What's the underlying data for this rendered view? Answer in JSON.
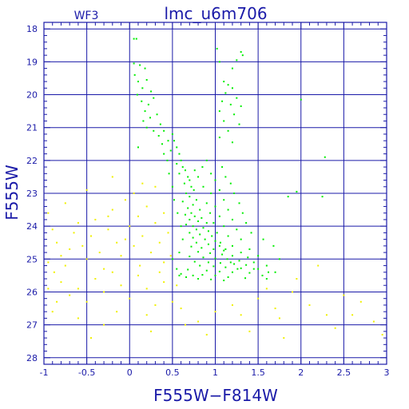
{
  "chart_data": {
    "type": "scatter",
    "panel_label": "WF3",
    "title": "lmc_u6m706",
    "xlabel": "F555W−F814W",
    "ylabel": "F555W",
    "xlim": [
      -1,
      3
    ],
    "ylim": [
      28.2,
      17.8
    ],
    "y_inverted": true,
    "grid": true,
    "x_ticks": [
      -1,
      -0.5,
      0,
      0.5,
      1,
      1.5,
      2,
      2.5,
      3
    ],
    "x_tick_labels": [
      "-1",
      "-0.5",
      "0",
      "0.5",
      "1",
      "1.5",
      "2",
      "2.5",
      "3"
    ],
    "y_ticks": [
      18,
      19,
      20,
      21,
      22,
      23,
      24,
      25,
      26,
      27,
      28
    ],
    "y_tick_labels": [
      "18",
      "19",
      "20",
      "21",
      "22",
      "23",
      "24",
      "25",
      "26",
      "27",
      "28"
    ],
    "colors": {
      "axes": "#1a1aa8",
      "grid": "#1a1aa8",
      "green_series": "#00ee00",
      "yellow_series": "#f0f000",
      "background": "#ffffff"
    },
    "series": [
      {
        "color": "green",
        "points": [
          [
            0.05,
            18.3
          ],
          [
            0.08,
            18.3
          ],
          [
            1.02,
            18.6
          ],
          [
            1.3,
            18.7
          ],
          [
            1.32,
            18.8
          ],
          [
            1.25,
            18.95
          ],
          [
            1.2,
            19.2
          ],
          [
            1.05,
            19.0
          ],
          [
            0.05,
            19.05
          ],
          [
            0.12,
            19.1
          ],
          [
            0.18,
            19.2
          ],
          [
            0.06,
            19.4
          ],
          [
            0.1,
            19.6
          ],
          [
            0.15,
            19.8
          ],
          [
            0.2,
            19.55
          ],
          [
            0.25,
            19.9
          ],
          [
            0.09,
            20.0
          ],
          [
            0.14,
            20.2
          ],
          [
            0.22,
            20.3
          ],
          [
            0.28,
            20.1
          ],
          [
            0.18,
            20.5
          ],
          [
            0.24,
            20.7
          ],
          [
            0.32,
            20.6
          ],
          [
            0.36,
            20.9
          ],
          [
            0.16,
            20.8
          ],
          [
            0.2,
            21.0
          ],
          [
            0.28,
            21.1
          ],
          [
            0.34,
            21.25
          ],
          [
            0.4,
            21.1
          ],
          [
            0.45,
            21.4
          ],
          [
            1.1,
            19.6
          ],
          [
            1.15,
            19.7
          ],
          [
            1.2,
            19.8
          ],
          [
            1.12,
            19.95
          ],
          [
            1.25,
            20.1
          ],
          [
            1.08,
            20.2
          ],
          [
            1.18,
            20.3
          ],
          [
            1.3,
            20.35
          ],
          [
            1.05,
            20.5
          ],
          [
            1.22,
            20.6
          ],
          [
            1.1,
            20.8
          ],
          [
            1.28,
            20.9
          ],
          [
            1.15,
            21.1
          ],
          [
            1.05,
            21.3
          ],
          [
            1.2,
            21.45
          ],
          [
            0.1,
            21.6
          ],
          [
            2.0,
            20.15
          ],
          [
            2.28,
            21.9
          ],
          [
            2.25,
            23.1
          ],
          [
            1.85,
            23.1
          ],
          [
            1.95,
            22.95
          ],
          [
            0.5,
            21.2
          ],
          [
            0.52,
            21.4
          ],
          [
            0.55,
            21.6
          ],
          [
            0.58,
            21.8
          ],
          [
            0.48,
            21.7
          ],
          [
            0.6,
            22.0
          ],
          [
            0.62,
            22.2
          ],
          [
            0.55,
            22.1
          ],
          [
            0.65,
            22.3
          ],
          [
            0.68,
            22.5
          ],
          [
            0.58,
            22.4
          ],
          [
            0.7,
            22.6
          ],
          [
            0.72,
            22.8
          ],
          [
            0.64,
            22.7
          ],
          [
            0.75,
            22.9
          ],
          [
            0.66,
            23.0
          ],
          [
            0.7,
            23.1
          ],
          [
            0.78,
            23.2
          ],
          [
            0.62,
            23.25
          ],
          [
            0.74,
            23.35
          ],
          [
            0.68,
            23.45
          ],
          [
            0.82,
            23.5
          ],
          [
            0.72,
            23.6
          ],
          [
            0.65,
            23.65
          ],
          [
            0.76,
            23.7
          ],
          [
            0.84,
            23.75
          ],
          [
            0.7,
            23.8
          ],
          [
            0.8,
            23.85
          ],
          [
            0.9,
            23.9
          ],
          [
            0.66,
            23.95
          ],
          [
            0.74,
            24.0
          ],
          [
            0.86,
            24.05
          ],
          [
            0.78,
            24.1
          ],
          [
            0.92,
            24.15
          ],
          [
            0.7,
            24.2
          ],
          [
            0.82,
            24.25
          ],
          [
            0.96,
            24.3
          ],
          [
            0.74,
            24.35
          ],
          [
            0.88,
            24.4
          ],
          [
            1.0,
            24.45
          ],
          [
            0.78,
            24.5
          ],
          [
            0.92,
            24.55
          ],
          [
            1.05,
            24.6
          ],
          [
            0.72,
            24.62
          ],
          [
            0.84,
            24.66
          ],
          [
            0.98,
            24.7
          ],
          [
            1.1,
            24.74
          ],
          [
            0.8,
            24.78
          ],
          [
            0.94,
            24.82
          ],
          [
            1.08,
            24.86
          ],
          [
            1.2,
            24.9
          ],
          [
            0.7,
            24.92
          ],
          [
            0.86,
            24.95
          ],
          [
            1.0,
            24.98
          ],
          [
            1.14,
            25.0
          ],
          [
            1.28,
            25.05
          ],
          [
            0.76,
            25.08
          ],
          [
            0.92,
            25.1
          ],
          [
            1.06,
            25.12
          ],
          [
            1.22,
            25.15
          ],
          [
            1.36,
            25.18
          ],
          [
            0.82,
            25.2
          ],
          [
            0.98,
            25.22
          ],
          [
            1.12,
            25.25
          ],
          [
            1.3,
            25.28
          ],
          [
            1.45,
            25.3
          ],
          [
            0.68,
            25.32
          ],
          [
            0.9,
            25.35
          ],
          [
            1.05,
            25.38
          ],
          [
            1.2,
            25.4
          ],
          [
            1.4,
            25.42
          ],
          [
            0.6,
            25.45
          ],
          [
            0.85,
            25.48
          ],
          [
            1.0,
            25.5
          ],
          [
            1.15,
            25.55
          ],
          [
            1.35,
            25.58
          ],
          [
            1.55,
            25.5
          ],
          [
            1.6,
            25.6
          ],
          [
            0.55,
            25.3
          ],
          [
            0.5,
            25.0
          ],
          [
            0.58,
            24.8
          ],
          [
            0.62,
            24.4
          ],
          [
            0.6,
            24.0
          ],
          [
            0.56,
            23.6
          ],
          [
            0.52,
            23.2
          ],
          [
            0.5,
            22.8
          ],
          [
            0.46,
            22.4
          ],
          [
            0.44,
            22.0
          ],
          [
            0.4,
            21.8
          ],
          [
            0.38,
            21.5
          ],
          [
            0.85,
            22.2
          ],
          [
            0.9,
            22.0
          ],
          [
            0.95,
            22.4
          ],
          [
            1.0,
            22.6
          ],
          [
            1.05,
            22.9
          ],
          [
            1.1,
            23.2
          ],
          [
            1.15,
            23.5
          ],
          [
            1.2,
            23.8
          ],
          [
            1.25,
            24.1
          ],
          [
            1.3,
            24.4
          ],
          [
            1.4,
            24.7
          ],
          [
            1.5,
            24.9
          ],
          [
            1.6,
            25.2
          ],
          [
            1.7,
            25.4
          ],
          [
            0.95,
            23.0
          ],
          [
            1.0,
            23.4
          ],
          [
            1.05,
            23.7
          ],
          [
            1.1,
            24.0
          ],
          [
            1.15,
            24.3
          ],
          [
            1.2,
            24.6
          ],
          [
            1.3,
            24.8
          ],
          [
            0.8,
            22.5
          ],
          [
            0.76,
            22.3
          ],
          [
            0.86,
            22.8
          ],
          [
            0.9,
            23.3
          ],
          [
            0.94,
            23.6
          ],
          [
            0.98,
            23.9
          ],
          [
            1.02,
            24.2
          ],
          [
            1.06,
            24.5
          ],
          [
            1.12,
            24.7
          ],
          [
            1.18,
            25.1
          ],
          [
            1.26,
            25.3
          ],
          [
            0.74,
            25.5
          ],
          [
            0.66,
            25.55
          ],
          [
            0.8,
            25.6
          ],
          [
            0.95,
            25.62
          ],
          [
            1.1,
            25.65
          ],
          [
            0.58,
            25.5
          ],
          [
            1.5,
            25.3
          ],
          [
            1.45,
            25.1
          ],
          [
            1.38,
            24.95
          ],
          [
            1.62,
            25.4
          ],
          [
            1.75,
            25.0
          ],
          [
            1.68,
            24.6
          ],
          [
            1.56,
            24.4
          ],
          [
            1.42,
            24.2
          ],
          [
            1.36,
            23.9
          ],
          [
            1.32,
            23.6
          ],
          [
            1.28,
            23.3
          ],
          [
            1.22,
            23.0
          ],
          [
            1.18,
            22.7
          ],
          [
            1.12,
            22.5
          ],
          [
            1.08,
            22.2
          ]
        ]
      },
      {
        "color": "yellow",
        "points": [
          [
            -0.95,
            23.6
          ],
          [
            -0.9,
            24.1
          ],
          [
            -0.85,
            24.5
          ],
          [
            -0.8,
            24.9
          ],
          [
            -0.95,
            25.1
          ],
          [
            -0.88,
            25.4
          ],
          [
            -0.75,
            25.2
          ],
          [
            -0.7,
            24.7
          ],
          [
            -0.65,
            24.2
          ],
          [
            -0.6,
            23.9
          ],
          [
            -0.55,
            24.6
          ],
          [
            -0.5,
            25.0
          ],
          [
            -0.45,
            24.3
          ],
          [
            -0.4,
            23.8
          ],
          [
            -0.35,
            24.8
          ],
          [
            -0.3,
            25.3
          ],
          [
            -0.25,
            24.1
          ],
          [
            -0.2,
            23.5
          ],
          [
            -0.15,
            24.5
          ],
          [
            -0.1,
            24.9
          ],
          [
            -0.05,
            23.2
          ],
          [
            0.0,
            24.0
          ],
          [
            0.05,
            24.6
          ],
          [
            0.1,
            23.7
          ],
          [
            0.15,
            24.3
          ],
          [
            0.2,
            23.4
          ],
          [
            0.25,
            24.8
          ],
          [
            0.3,
            23.9
          ],
          [
            0.35,
            24.5
          ],
          [
            0.4,
            25.1
          ],
          [
            0.45,
            24.2
          ],
          [
            -0.8,
            25.7
          ],
          [
            -0.7,
            26.1
          ],
          [
            -0.6,
            25.9
          ],
          [
            -0.5,
            26.3
          ],
          [
            -0.4,
            25.6
          ],
          [
            -0.3,
            26.0
          ],
          [
            -0.2,
            25.4
          ],
          [
            -0.1,
            25.8
          ],
          [
            0.0,
            26.2
          ],
          [
            0.1,
            25.5
          ],
          [
            0.2,
            25.9
          ],
          [
            0.3,
            26.4
          ],
          [
            0.4,
            25.7
          ],
          [
            -0.9,
            26.6
          ],
          [
            -0.6,
            26.8
          ],
          [
            -0.3,
            27.0
          ],
          [
            0.2,
            26.7
          ],
          [
            0.5,
            26.3
          ],
          [
            1.5,
            26.2
          ],
          [
            1.7,
            26.5
          ],
          [
            1.9,
            26.0
          ],
          [
            2.1,
            26.4
          ],
          [
            2.3,
            26.7
          ],
          [
            2.5,
            26.1
          ],
          [
            2.7,
            26.3
          ],
          [
            2.85,
            26.9
          ],
          [
            2.95,
            27.3
          ],
          [
            1.4,
            27.2
          ],
          [
            1.8,
            27.4
          ],
          [
            2.2,
            25.2
          ],
          [
            1.95,
            25.6
          ],
          [
            1.75,
            26.8
          ],
          [
            0.6,
            26.5
          ],
          [
            0.8,
            26.9
          ],
          [
            1.0,
            26.6
          ],
          [
            1.2,
            26.4
          ],
          [
            0.9,
            27.3
          ],
          [
            -0.2,
            22.5
          ],
          [
            0.05,
            23.0
          ],
          [
            0.3,
            22.8
          ],
          [
            -0.5,
            22.9
          ],
          [
            -0.75,
            23.3
          ],
          [
            0.4,
            23.6
          ],
          [
            0.48,
            24.9
          ],
          [
            0.35,
            25.4
          ],
          [
            0.12,
            25.2
          ],
          [
            -0.15,
            26.6
          ],
          [
            -0.45,
            27.4
          ],
          [
            0.65,
            27.0
          ],
          [
            2.6,
            26.7
          ],
          [
            2.4,
            27.1
          ],
          [
            1.3,
            26.7
          ],
          [
            1.6,
            25.9
          ],
          [
            -0.95,
            25.9
          ],
          [
            -0.85,
            26.3
          ],
          [
            0.25,
            27.2
          ],
          [
            0.55,
            25.8
          ],
          [
            -0.05,
            24.4
          ],
          [
            -0.25,
            23.7
          ],
          [
            0.15,
            22.7
          ]
        ]
      }
    ]
  }
}
